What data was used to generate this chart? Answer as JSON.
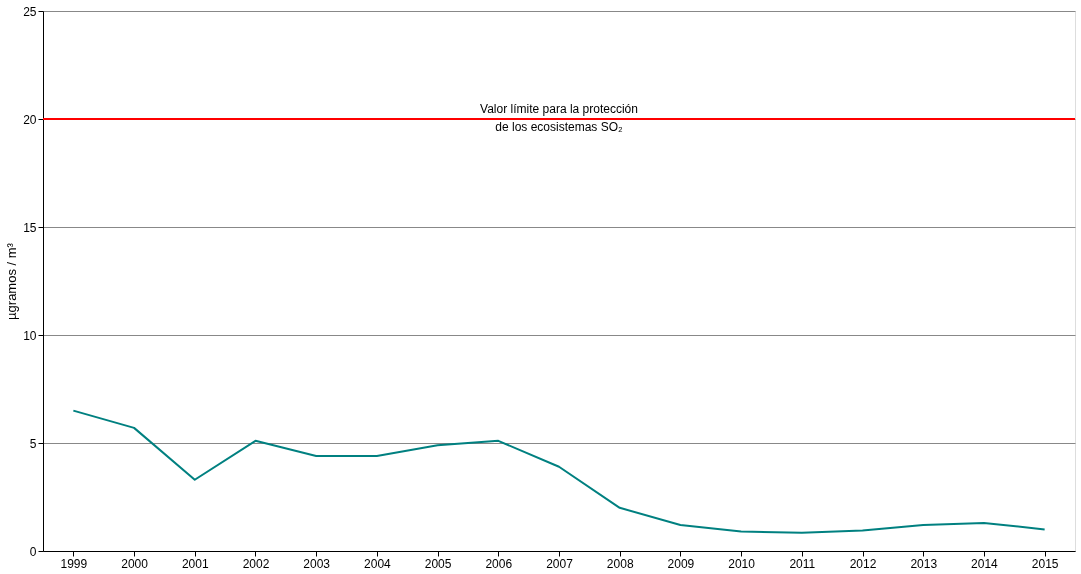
{
  "chart_data": {
    "type": "line",
    "ylabel": "µgramos / m³",
    "categories": [
      "1999",
      "2000",
      "2001",
      "2002",
      "2003",
      "2004",
      "2005",
      "2006",
      "2007",
      "2008",
      "2009",
      "2010",
      "2011",
      "2012",
      "2013",
      "2014",
      "2015"
    ],
    "series": [
      {
        "color": "#008080",
        "values": [
          6.5,
          5.7,
          3.3,
          5.1,
          4.4,
          4.4,
          4.9,
          5.1,
          3.9,
          2.0,
          1.2,
          0.9,
          0.85,
          0.95,
          1.2,
          1.3,
          1.0
        ]
      }
    ],
    "ylim": [
      0,
      25
    ],
    "yticks": [
      0,
      5,
      10,
      15,
      20,
      25
    ],
    "grid": "y",
    "marker": "none",
    "line_style": "solid",
    "ref_lines": [
      {
        "axis": "y",
        "value": 20,
        "label": "Valor límite para la protección\nde los ecosistemas SO₂",
        "color": "#ff0000"
      }
    ]
  }
}
